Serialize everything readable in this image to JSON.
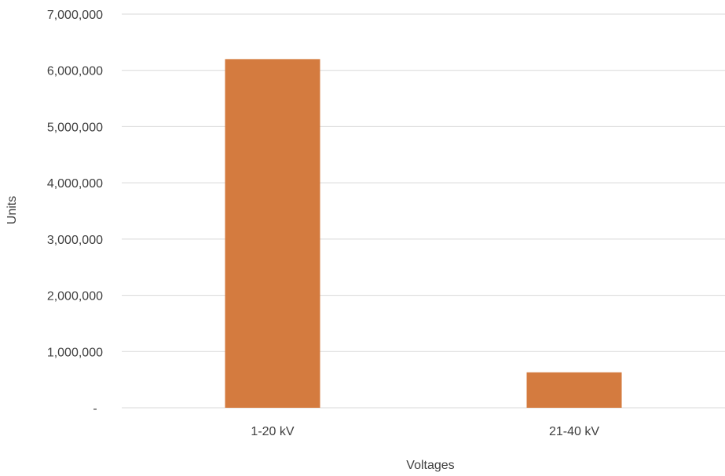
{
  "chart_data": {
    "type": "bar",
    "title": "",
    "categories": [
      "1-20 kV",
      "21-40 kV"
    ],
    "values": [
      6200000,
      630000
    ],
    "xlabel": "Voltages",
    "ylabel": "Units",
    "ylim": [
      0,
      7000000
    ],
    "yticks": [
      {
        "value": 0,
        "label": "-"
      },
      {
        "value": 1000000,
        "label": "1,000,000"
      },
      {
        "value": 2000000,
        "label": "2,000,000"
      },
      {
        "value": 3000000,
        "label": "3,000,000"
      },
      {
        "value": 4000000,
        "label": "4,000,000"
      },
      {
        "value": 5000000,
        "label": "5,000,000"
      },
      {
        "value": 6000000,
        "label": "6,000,000"
      },
      {
        "value": 7000000,
        "label": "7,000,000"
      }
    ],
    "grid": true,
    "legend": "none",
    "colors": {
      "bar": "#d47b3f",
      "grid": "#d9d9d9",
      "text": "#404040"
    }
  }
}
